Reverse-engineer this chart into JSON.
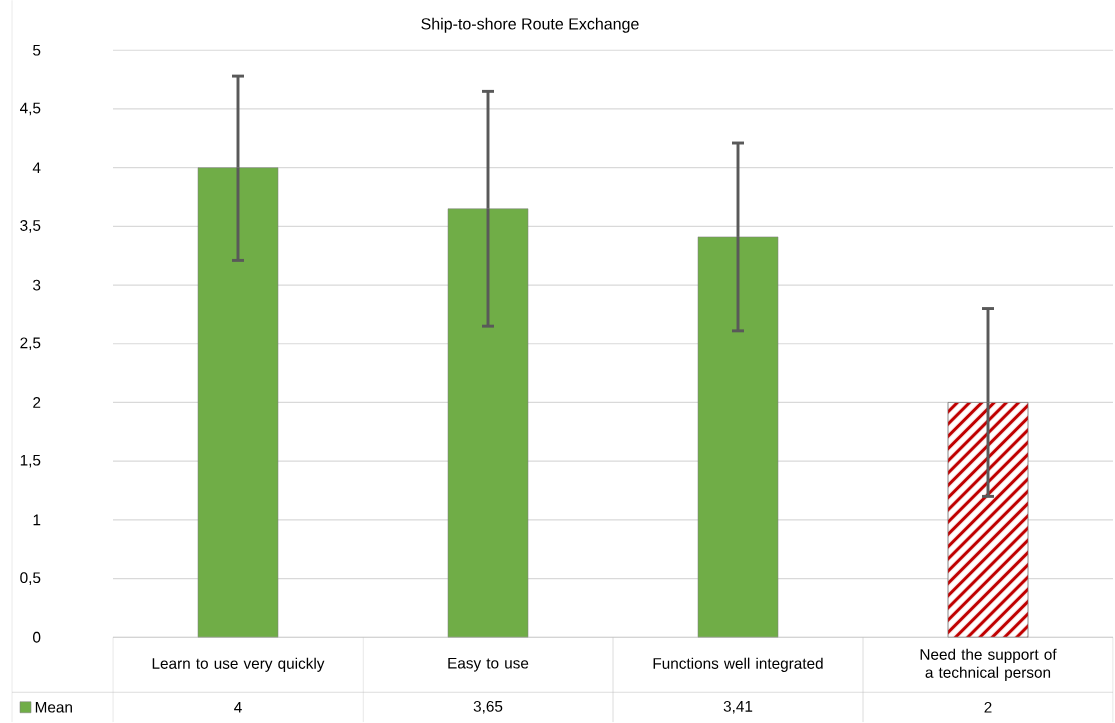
{
  "chart_data": {
    "type": "bar",
    "title": "Ship-to-shore Route Exchange",
    "categories": [
      "Learn to use very quickly",
      "Easy to use",
      "Functions well integrated",
      "Need the support of a technical person"
    ],
    "series": [
      {
        "name": "Mean",
        "values": [
          4,
          3.65,
          3.41,
          2
        ],
        "colors": [
          "#70ad47",
          "#70ad47",
          "#70ad47",
          "#c00000"
        ],
        "errors": [
          [
            3.21,
            4.78
          ],
          [
            2.65,
            4.65
          ],
          [
            2.61,
            4.21
          ],
          [
            1.2,
            2.8
          ]
        ],
        "value_labels": [
          "4",
          "3,65",
          "3,41",
          "2"
        ]
      }
    ],
    "ylim": [
      0,
      5
    ],
    "yticks": [
      0,
      {
        "value": 0.5,
        "label": "0,5"
      },
      1,
      {
        "value": 1.5,
        "label": "1,5"
      },
      2,
      {
        "value": 2.5,
        "label": "2,5"
      },
      3,
      {
        "value": 3.5,
        "label": "3,5"
      },
      4,
      {
        "value": 4.5,
        "label": "4,5"
      },
      5
    ],
    "grid": "y",
    "legend": "bottom left"
  }
}
